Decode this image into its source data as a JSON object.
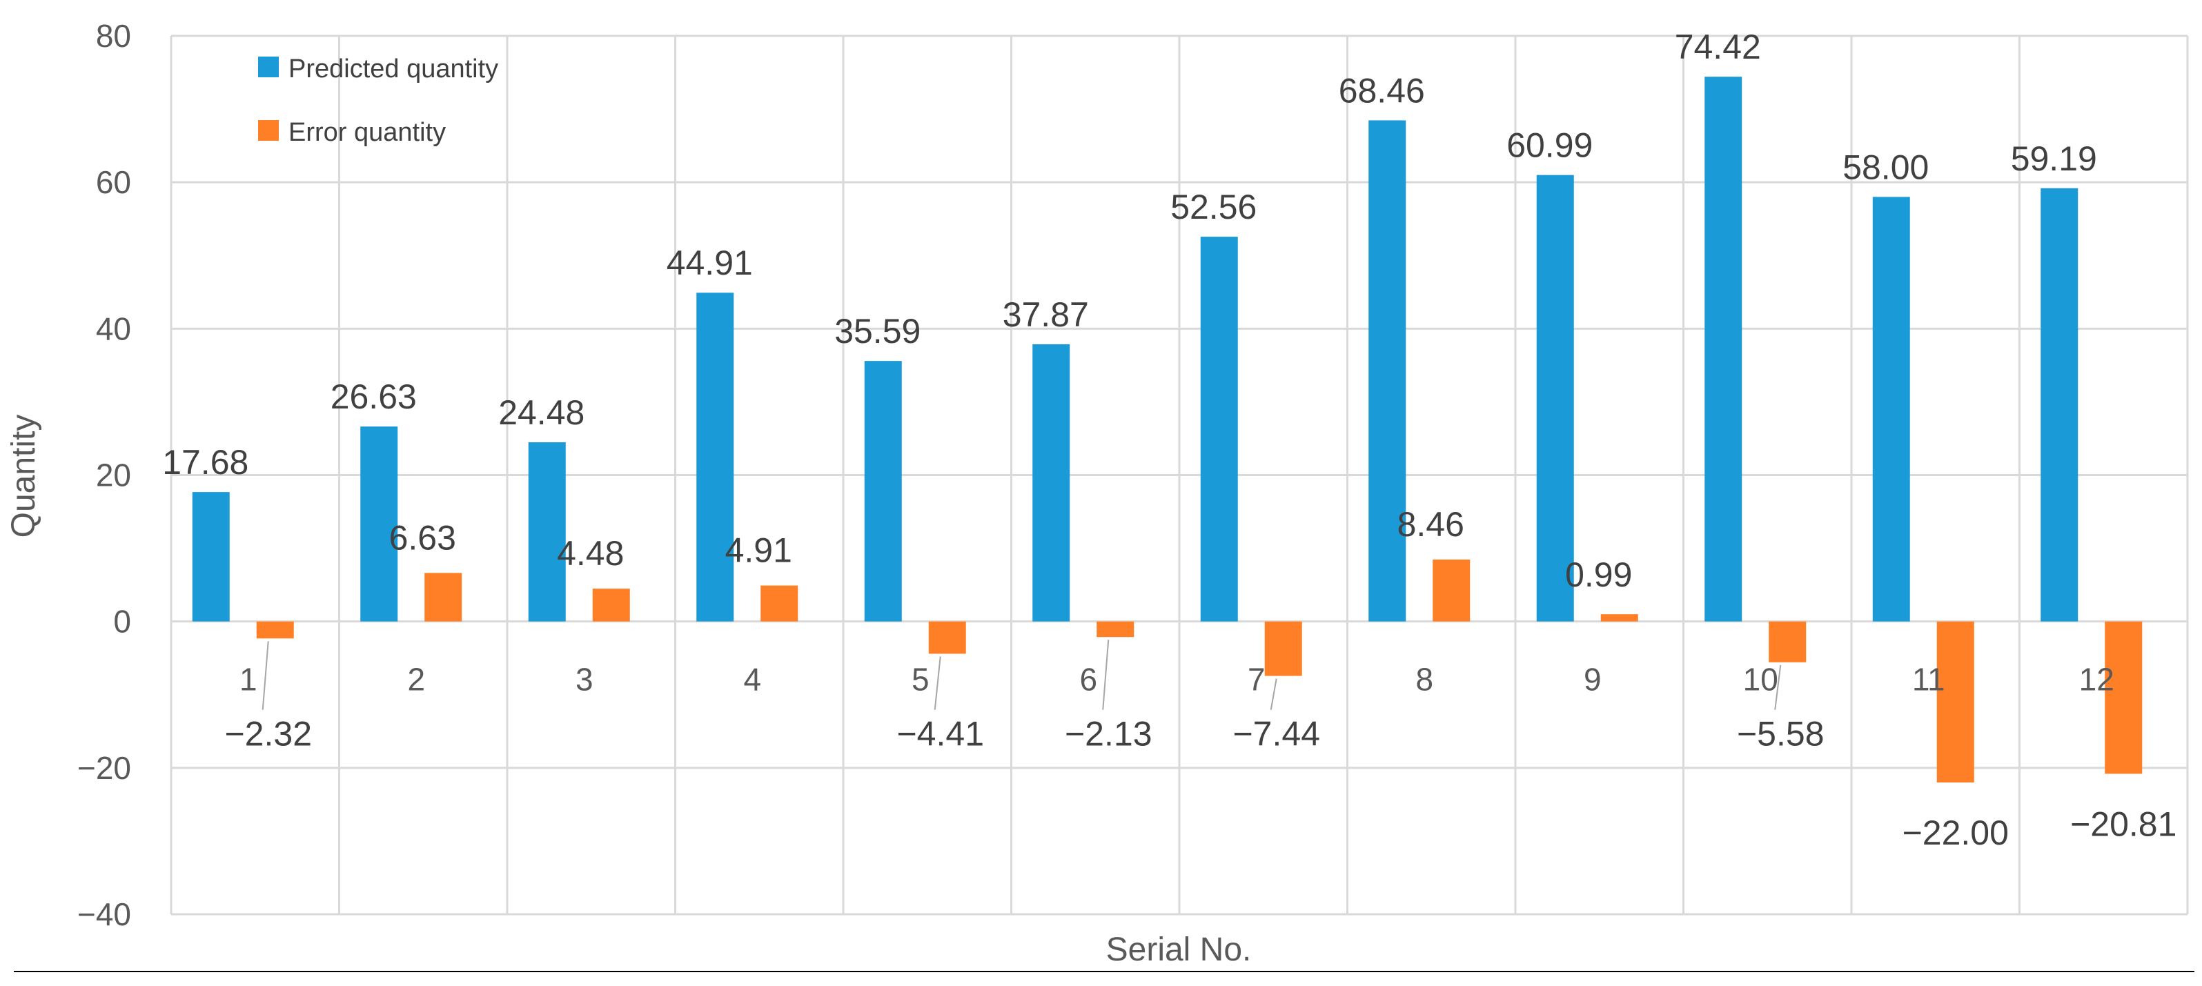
{
  "chart_data": {
    "type": "bar",
    "categories": [
      "1",
      "2",
      "3",
      "4",
      "5",
      "6",
      "7",
      "8",
      "9",
      "10",
      "11",
      "12"
    ],
    "series": [
      {
        "name": "Predicted quantity",
        "color": "#1a9bd7",
        "values": [
          17.68,
          26.63,
          24.48,
          44.91,
          35.59,
          37.87,
          52.56,
          68.46,
          60.99,
          74.42,
          58.0,
          59.19
        ],
        "labels": [
          "17.68",
          "26.63",
          "24.48",
          "44.91",
          "35.59",
          "37.87",
          "52.56",
          "68.46",
          "60.99",
          "74.42",
          "58.00",
          "59.19"
        ]
      },
      {
        "name": "Error quantity",
        "color": "#ff7f27",
        "values": [
          -2.32,
          6.63,
          4.48,
          4.91,
          -4.41,
          -2.13,
          -7.44,
          8.46,
          0.99,
          -5.58,
          -22.0,
          -20.81
        ],
        "labels": [
          "−2.32",
          "6.63",
          "4.48",
          "4.91",
          "−4.41",
          "−2.13",
          "−7.44",
          "8.46",
          "0.99",
          "−5.58",
          "−22.00",
          "−20.81"
        ]
      }
    ],
    "title": "",
    "xlabel": "Serial No.",
    "ylabel": "Quantity",
    "ylim": [
      -40,
      80
    ],
    "yticks": [
      80,
      60,
      40,
      20,
      0,
      -20,
      -40
    ],
    "ytick_labels": [
      "80",
      "60",
      "40",
      "20",
      "0",
      "−20",
      "−40"
    ],
    "grid": true,
    "legend_position": "top-left"
  }
}
